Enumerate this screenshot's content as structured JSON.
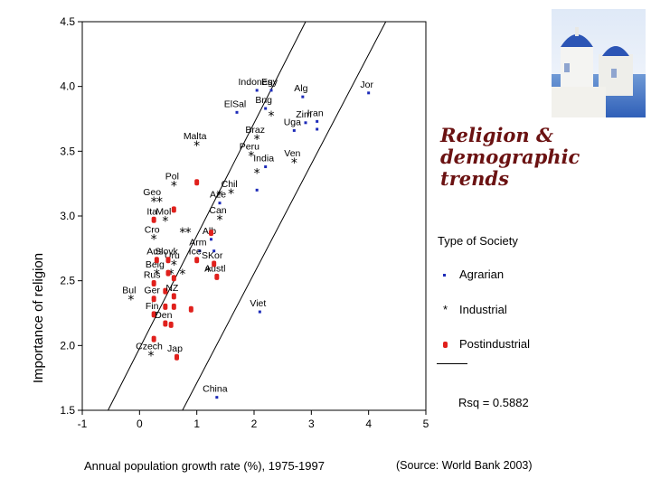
{
  "slide": {
    "title_line1": "Religion &",
    "title_line2": "demographic",
    "title_line3": "trends",
    "source": "(Source: World Bank 2003)",
    "photo_icon": "santorini-church-photo"
  },
  "legend": {
    "title": "Type of Society",
    "items": [
      {
        "label": "Agrarian",
        "symbol": "square",
        "color": "#1c2ab8"
      },
      {
        "label": "Industrial",
        "symbol": "asterisk",
        "color": "#000000"
      },
      {
        "label": "Postindustrial",
        "symbol": "dot",
        "color": "#e0201c"
      }
    ],
    "rsq": "Rsq = 0.5882"
  },
  "chart_data": {
    "type": "scatter",
    "xlabel": "Annual population growth rate (%), 1975-1997",
    "ylabel": "Importance of religion",
    "xlim": [
      -1,
      5
    ],
    "ylim": [
      1.5,
      4.5
    ],
    "x_ticks": [
      -1,
      0,
      1,
      2,
      3,
      4,
      5
    ],
    "x_tick_labels": [
      "-1",
      "0",
      "1",
      "2",
      "3",
      "4",
      "5"
    ],
    "y_ticks": [
      1.5,
      2.0,
      2.5,
      3.0,
      3.5,
      4.0,
      4.5
    ],
    "y_tick_labels": [
      "1.5",
      "2.0",
      "2.5",
      "3.0",
      "3.5",
      "4.0",
      "4.5"
    ],
    "fit_lines": [
      {
        "from": [
          -0.55,
          1.5
        ],
        "to": [
          2.9,
          4.5
        ]
      },
      {
        "from": [
          0.75,
          1.5
        ],
        "to": [
          4.3,
          4.5
        ]
      }
    ],
    "series": [
      {
        "name": "Agrarian",
        "color": "#1c2ab8",
        "points": [
          {
            "x": 2.05,
            "y": 3.97,
            "label": "Indones"
          },
          {
            "x": 2.3,
            "y": 3.97,
            "label": "Egy"
          },
          {
            "x": 2.85,
            "y": 3.92,
            "label": "Alg"
          },
          {
            "x": 4.0,
            "y": 3.95,
            "label": "Jor"
          },
          {
            "x": 1.7,
            "y": 3.8,
            "label": "ElSal"
          },
          {
            "x": 2.2,
            "y": 3.83,
            "label": "Bng"
          },
          {
            "x": 3.1,
            "y": 3.73,
            "label": "Iran"
          },
          {
            "x": 2.7,
            "y": 3.66,
            "label": "Uga"
          },
          {
            "x": 2.9,
            "y": 3.72,
            "label": "Zim"
          },
          {
            "x": 3.1,
            "y": 3.67,
            "label": ""
          },
          {
            "x": 2.2,
            "y": 3.38,
            "label": "India"
          },
          {
            "x": 2.05,
            "y": 3.2,
            "label": ""
          },
          {
            "x": 1.4,
            "y": 3.1,
            "label": "Aze"
          },
          {
            "x": 1.25,
            "y": 2.82,
            "label": "Alb"
          },
          {
            "x": 1.05,
            "y": 2.73,
            "label": "Arm"
          },
          {
            "x": 1.3,
            "y": 2.73,
            "label": ""
          },
          {
            "x": 2.1,
            "y": 2.26,
            "label": "Viet"
          },
          {
            "x": 1.35,
            "y": 1.6,
            "label": "China"
          }
        ]
      },
      {
        "name": "Industrial",
        "color": "#000000",
        "points": [
          {
            "x": 2.3,
            "y": 3.78,
            "label": ""
          },
          {
            "x": 1.0,
            "y": 3.55,
            "label": "Malta"
          },
          {
            "x": 2.05,
            "y": 3.6,
            "label": "Braz"
          },
          {
            "x": 1.95,
            "y": 3.47,
            "label": "Peru"
          },
          {
            "x": 2.7,
            "y": 3.42,
            "label": "Ven"
          },
          {
            "x": 2.05,
            "y": 3.34,
            "label": ""
          },
          {
            "x": 0.6,
            "y": 3.24,
            "label": "Pol"
          },
          {
            "x": 1.6,
            "y": 3.18,
            "label": "Chil"
          },
          {
            "x": 0.25,
            "y": 3.12,
            "label": "Geo"
          },
          {
            "x": 0.35,
            "y": 3.12,
            "label": ""
          },
          {
            "x": 1.4,
            "y": 3.17,
            "label": ""
          },
          {
            "x": 0.45,
            "y": 2.97,
            "label": "Mol"
          },
          {
            "x": 1.4,
            "y": 2.98,
            "label": "Can"
          },
          {
            "x": 0.75,
            "y": 2.88,
            "label": ""
          },
          {
            "x": 0.85,
            "y": 2.88,
            "label": ""
          },
          {
            "x": 0.25,
            "y": 2.83,
            "label": "Cro"
          },
          {
            "x": 0.6,
            "y": 2.63,
            "label": "Uru"
          },
          {
            "x": 0.3,
            "y": 2.56,
            "label": "Belg"
          },
          {
            "x": 0.55,
            "y": 2.56,
            "label": ""
          },
          {
            "x": 0.75,
            "y": 2.56,
            "label": ""
          },
          {
            "x": 1.2,
            "y": 2.58,
            "label": ""
          },
          {
            "x": -0.15,
            "y": 2.36,
            "label": "Bul"
          },
          {
            "x": 0.2,
            "y": 1.93,
            "label": "Czech"
          }
        ]
      },
      {
        "name": "Postindustrial",
        "color": "#e0201c",
        "points": [
          {
            "x": 1.0,
            "y": 3.26,
            "label": ""
          },
          {
            "x": 0.6,
            "y": 3.05,
            "label": ""
          },
          {
            "x": 0.25,
            "y": 2.97,
            "label": "Ita"
          },
          {
            "x": 1.25,
            "y": 2.87,
            "label": ""
          },
          {
            "x": 0.3,
            "y": 2.66,
            "label": "Aus"
          },
          {
            "x": 0.5,
            "y": 2.66,
            "label": "Slovk"
          },
          {
            "x": 1.0,
            "y": 2.66,
            "label": "Ice"
          },
          {
            "x": 1.3,
            "y": 2.63,
            "label": "SKor"
          },
          {
            "x": 0.5,
            "y": 2.56,
            "label": ""
          },
          {
            "x": 0.6,
            "y": 2.52,
            "label": ""
          },
          {
            "x": 1.35,
            "y": 2.53,
            "label": "Austl"
          },
          {
            "x": 0.25,
            "y": 2.48,
            "label": "Rus"
          },
          {
            "x": 0.45,
            "y": 2.42,
            "label": ""
          },
          {
            "x": 0.6,
            "y": 2.38,
            "label": "NZ"
          },
          {
            "x": 0.25,
            "y": 2.36,
            "label": "Ger"
          },
          {
            "x": 0.45,
            "y": 2.3,
            "label": ""
          },
          {
            "x": 0.6,
            "y": 2.3,
            "label": ""
          },
          {
            "x": 0.9,
            "y": 2.28,
            "label": ""
          },
          {
            "x": 0.25,
            "y": 2.24,
            "label": "Fin"
          },
          {
            "x": 0.45,
            "y": 2.17,
            "label": "Den"
          },
          {
            "x": 0.55,
            "y": 2.16,
            "label": ""
          },
          {
            "x": 0.25,
            "y": 2.05,
            "label": ""
          },
          {
            "x": 0.65,
            "y": 1.91,
            "label": "Jap"
          }
        ]
      }
    ]
  }
}
